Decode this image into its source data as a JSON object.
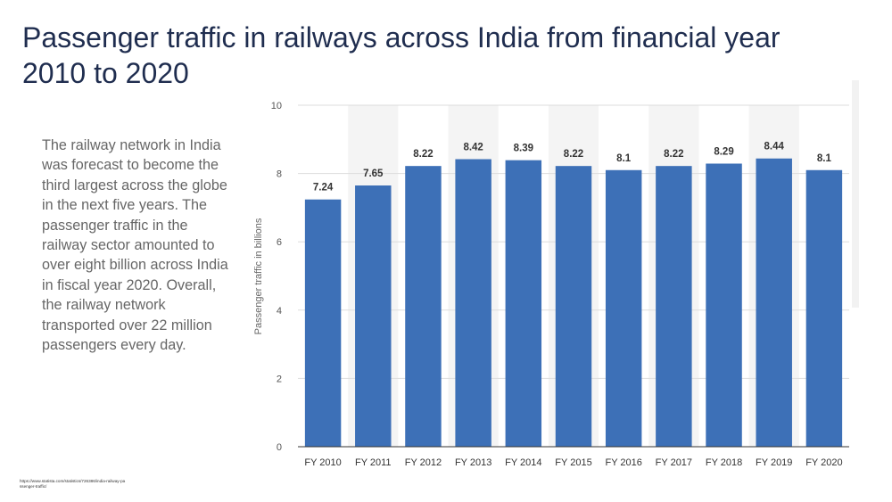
{
  "slide": {
    "title": "Passenger traffic in railways across India from financial year 2010 to 2020",
    "description": "The railway network in India was forecast to become the third largest across the globe in the next five years. The passenger traffic in the railway sector amounted to over eight billion across India in fiscal year 2020. Overall, the railway network transported over 22 million passengers every day.",
    "source": "https://www.statista.com/statistics/726386/india-railway-passenger-traffic/"
  },
  "chart_data": {
    "type": "bar",
    "title": "",
    "xlabel": "",
    "ylabel": "Passenger traffic in billions",
    "categories": [
      "FY 2010",
      "FY 2011",
      "FY 2012",
      "FY 2013",
      "FY 2014",
      "FY 2015",
      "FY 2016",
      "FY 2017",
      "FY 2018",
      "FY 2019",
      "FY 2020"
    ],
    "values": [
      7.24,
      7.65,
      8.22,
      8.42,
      8.39,
      8.22,
      8.1,
      8.22,
      8.29,
      8.44,
      8.1
    ],
    "data_labels": [
      "7.24",
      "7.65",
      "8.22",
      "8.42",
      "8.39",
      "8.22",
      "8.1",
      "8.22",
      "8.29",
      "8.44",
      "8.1"
    ],
    "ylim": [
      0,
      10
    ],
    "yticks": [
      0,
      2,
      4,
      6,
      8,
      10
    ],
    "grid": true,
    "legend": "none",
    "colors": {
      "bar": "#3d70b7",
      "alt_band": "#f4f4f4",
      "grid": "#dddddd",
      "axis": "#333333",
      "tick_text": "#555555",
      "value_text": "#333333"
    }
  }
}
